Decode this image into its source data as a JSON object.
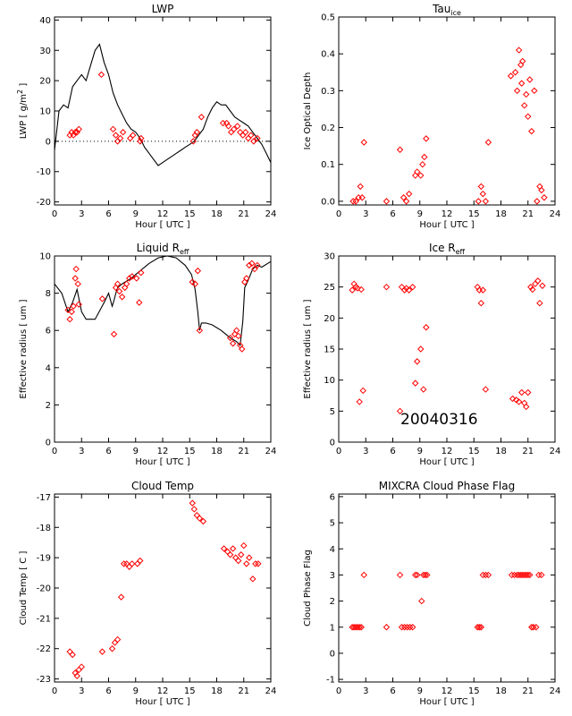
{
  "date_label": "20040316",
  "colors": {
    "model": "#000000",
    "obs": "#ff0000"
  },
  "chart_data": [
    {
      "type": "line",
      "title": "LWP",
      "xlabel": "Hour [ UTC ]",
      "ylabel": "LWP [ g/m",
      "ylabel_sup": "2",
      "ylabel_tail": " ]",
      "xlim": [
        0,
        24
      ],
      "ylim": [
        -21,
        41
      ],
      "xticks": [
        "0",
        "3",
        "6",
        "9",
        "12",
        "15",
        "18",
        "21",
        "24"
      ],
      "yticks": [
        "-20",
        "-10",
        "0",
        "10",
        "20",
        "30",
        "40"
      ],
      "zero_line": true,
      "series": [
        {
          "style": "line",
          "x": [
            0,
            0.5,
            1,
            1.5,
            2,
            2.5,
            3,
            3.5,
            4,
            4.5,
            5,
            5.5,
            6,
            6.5,
            7,
            7.5,
            8,
            8.5,
            9,
            9.5,
            10,
            10.5,
            11,
            11.5,
            12,
            12.5,
            13,
            13.5,
            14,
            14.5,
            15,
            15.5,
            16,
            16.5,
            17,
            17.5,
            18,
            18.5,
            19,
            19.5,
            20,
            20.5,
            21,
            21.5,
            22,
            22.5,
            23,
            23.5,
            24
          ],
          "y": [
            -3,
            10,
            12,
            11,
            18,
            20,
            22,
            20,
            25,
            30,
            32,
            26,
            22,
            16,
            12,
            9,
            6,
            4,
            3,
            1,
            -2,
            -4,
            -6,
            -8,
            -7,
            -6,
            -5,
            -4,
            -3,
            -2,
            -1,
            0,
            2,
            4,
            8,
            11,
            13,
            12,
            12,
            10,
            8,
            7,
            6,
            5,
            3,
            1,
            -1,
            -4,
            -7
          ]
        },
        {
          "style": "diamond",
          "x": [
            1.7,
            1.9,
            2.1,
            2.3,
            2.5,
            2.7,
            5.2,
            6.5,
            6.8,
            7.0,
            7.3,
            7.6,
            8.4,
            8.7,
            9.5,
            9.6,
            15.4,
            15.6,
            15.8,
            16.3,
            18.7,
            19.1,
            19.3,
            19.6,
            19.9,
            20.3,
            20.6,
            20.9,
            21.2,
            21.5,
            21.8,
            22.1,
            22.5
          ],
          "y": [
            2,
            3,
            2,
            3,
            3,
            4,
            22,
            4,
            2,
            0,
            1,
            3,
            1,
            2,
            0,
            1,
            0,
            2,
            3,
            8,
            6,
            6,
            5,
            3,
            4,
            5,
            3,
            2,
            3,
            1,
            2,
            0,
            1
          ]
        }
      ]
    },
    {
      "type": "scatter",
      "title": "Tau",
      "title_sub": "ice",
      "xlabel": "Hour [ UTC ]",
      "ylabel": "Ice Optical Depth",
      "xlim": [
        0,
        24
      ],
      "ylim": [
        -0.01,
        0.5
      ],
      "xticks": [
        "0",
        "3",
        "6",
        "9",
        "12",
        "15",
        "18",
        "21",
        "24"
      ],
      "yticks": [
        "0.0",
        "0.1",
        "0.2",
        "0.3",
        "0.4",
        "0.5"
      ],
      "series": [
        {
          "style": "diamond",
          "x": [
            1.6,
            1.9,
            2.2,
            2.4,
            2.6,
            2.8,
            5.3,
            6.8,
            7.2,
            7.5,
            7.8,
            8.5,
            8.7,
            9.1,
            9.3,
            9.5,
            9.7,
            15.5,
            15.8,
            16.0,
            16.3,
            16.6,
            19.1,
            19.6,
            19.8,
            20.0,
            20.2,
            20.3,
            20.4,
            20.6,
            20.8,
            21.0,
            21.2,
            21.4,
            21.7,
            22.0,
            22.3,
            22.5,
            22.8
          ],
          "y": [
            0,
            0,
            0.01,
            0.04,
            0.01,
            0.16,
            0,
            0.14,
            0.01,
            0,
            0.02,
            0.07,
            0.08,
            0.07,
            0.1,
            0.12,
            0.17,
            0,
            0.04,
            0.02,
            0,
            0.16,
            0.34,
            0.35,
            0.3,
            0.41,
            0.37,
            0.32,
            0.38,
            0.26,
            0.29,
            0.23,
            0.33,
            0.19,
            0.3,
            0,
            0.04,
            0.03,
            0.01
          ]
        }
      ]
    },
    {
      "type": "line",
      "title": "Liquid R",
      "title_sub": "eff",
      "xlabel": "Hour [ UTC ]",
      "ylabel": "Effective radius [ um ]",
      "xlim": [
        0,
        24
      ],
      "ylim": [
        0,
        10
      ],
      "xticks": [
        "0",
        "3",
        "6",
        "9",
        "12",
        "15",
        "18",
        "21",
        "24"
      ],
      "yticks": [
        "0",
        "2",
        "4",
        "6",
        "8",
        "10"
      ],
      "series": [
        {
          "style": "line",
          "x": [
            0,
            0.8,
            1.5,
            2.0,
            2.5,
            3.0,
            3.5,
            4.5,
            5.5,
            6.0,
            6.4,
            6.6,
            6.8,
            7.0,
            7.5,
            8.5,
            9.5,
            10.5,
            11.5,
            12.5,
            13.5,
            14.5,
            15.2,
            15.6,
            15.9,
            16.1,
            16.3,
            16.8,
            17.5,
            18.5,
            19.5,
            20.2,
            20.6,
            20.9,
            21.1,
            21.4,
            22.0,
            22.5,
            23.0,
            24.0
          ],
          "y": [
            8.5,
            8.0,
            7.0,
            7.5,
            8.2,
            7.0,
            6.6,
            6.6,
            7.5,
            8.0,
            7.3,
            7.6,
            8.0,
            8.3,
            8.5,
            8.8,
            9.2,
            9.6,
            9.9,
            10.0,
            9.9,
            9.5,
            9.0,
            8.2,
            7.0,
            6.0,
            6.4,
            6.4,
            6.3,
            6.0,
            5.6,
            5.4,
            5.2,
            6.5,
            8.3,
            8.6,
            9.3,
            9.5,
            9.4,
            9.7
          ]
        },
        {
          "style": "diamond",
          "x": [
            1.5,
            1.7,
            1.9,
            2.1,
            2.3,
            2.4,
            2.6,
            2.7,
            5.3,
            6.6,
            6.8,
            7.0,
            7.2,
            7.5,
            7.8,
            8.0,
            8.3,
            8.6,
            9.1,
            9.4,
            9.6,
            15.3,
            15.6,
            15.9,
            16.1,
            19.5,
            19.8,
            20.0,
            20.2,
            20.4,
            20.6,
            20.8,
            21.1,
            21.3,
            21.6,
            21.9,
            22.2,
            22.5
          ],
          "y": [
            7.1,
            6.6,
            7.0,
            7.3,
            8.8,
            9.3,
            8.5,
            7.4,
            7.7,
            5.8,
            8.3,
            8.5,
            8.1,
            7.8,
            8.3,
            8.5,
            8.8,
            8.9,
            8.8,
            7.5,
            9.1,
            8.6,
            8.5,
            9.2,
            6.0,
            5.6,
            5.3,
            5.8,
            6.0,
            5.7,
            5.2,
            5.0,
            8.6,
            8.8,
            9.5,
            9.6,
            9.3,
            9.5
          ]
        }
      ]
    },
    {
      "type": "scatter",
      "title": "Ice R",
      "title_sub": "eff",
      "xlabel": "Hour [ UTC ]",
      "ylabel": "Effective radius [ um ]",
      "xlim": [
        0,
        24
      ],
      "ylim": [
        0,
        30
      ],
      "xticks": [
        "0",
        "3",
        "6",
        "9",
        "12",
        "15",
        "18",
        "21",
        "24"
      ],
      "yticks": [
        "0",
        "5",
        "10",
        "15",
        "20",
        "25",
        "30"
      ],
      "series": [
        {
          "style": "diamond",
          "x": [
            1.5,
            1.7,
            1.9,
            2.1,
            2.3,
            2.5,
            2.7,
            5.3,
            6.8,
            7.0,
            7.3,
            7.5,
            7.8,
            8.2,
            8.5,
            8.7,
            9.1,
            9.4,
            9.7,
            15.4,
            15.6,
            15.8,
            16.0,
            16.3,
            19.3,
            19.7,
            20.0,
            20.3,
            20.6,
            20.8,
            21.0,
            21.3,
            21.5,
            21.8,
            22.1,
            22.3,
            22.6
          ],
          "y": [
            24.5,
            25.5,
            25,
            24.8,
            6.5,
            24.6,
            8.3,
            25,
            5,
            25,
            24.5,
            24.8,
            24.5,
            25,
            9.5,
            13,
            15,
            8.5,
            18.5,
            25,
            24.5,
            22.4,
            24.5,
            8.5,
            7,
            6.8,
            6.5,
            8,
            6.3,
            5.7,
            8,
            25,
            24.6,
            25.5,
            26,
            22.4,
            25.2
          ]
        }
      ]
    },
    {
      "type": "scatter",
      "title": "Cloud Temp",
      "xlabel": "Hour [ UTC ]",
      "ylabel": "Cloud Temp [ C ]",
      "xlim": [
        0,
        24
      ],
      "ylim": [
        -23.1,
        -16.9
      ],
      "xticks": [
        "0",
        "3",
        "6",
        "9",
        "12",
        "15",
        "18",
        "21",
        "24"
      ],
      "yticks": [
        "-23",
        "-22",
        "-21",
        "-20",
        "-19",
        "-18",
        "-17"
      ],
      "series": [
        {
          "style": "diamond",
          "x": [
            1.7,
            2.0,
            2.3,
            2.5,
            2.7,
            3.0,
            5.3,
            6.4,
            6.7,
            7.0,
            7.4,
            7.7,
            8.0,
            8.3,
            8.6,
            9.2,
            9.5,
            15.3,
            15.5,
            15.8,
            16.1,
            16.5,
            18.8,
            19.2,
            19.5,
            19.8,
            20.1,
            20.4,
            20.7,
            21.0,
            21.3,
            21.6,
            22.0,
            22.3,
            22.6
          ],
          "y": [
            -22.1,
            -22.2,
            -22.8,
            -22.9,
            -22.7,
            -22.6,
            -22.1,
            -22.0,
            -21.8,
            -21.7,
            -20.3,
            -19.2,
            -19.2,
            -19.3,
            -19.2,
            -19.2,
            -19.1,
            -17.2,
            -17.4,
            -17.6,
            -17.7,
            -17.8,
            -18.7,
            -18.8,
            -18.9,
            -18.7,
            -19.0,
            -19.1,
            -18.9,
            -18.6,
            -19.2,
            -19.0,
            -19.7,
            -19.2,
            -19.2
          ]
        }
      ]
    },
    {
      "type": "scatter",
      "title": "MIXCRA Cloud Phase Flag",
      "xlabel": "Hour [ UTC ]",
      "ylabel": "Cloud Phase Flag",
      "xlim": [
        0,
        24
      ],
      "ylim": [
        -1.1,
        6.1
      ],
      "xticks": [
        "0",
        "3",
        "6",
        "9",
        "12",
        "15",
        "18",
        "21",
        "24"
      ],
      "yticks": [
        "-1",
        "0",
        "1",
        "2",
        "3",
        "4",
        "5",
        "6"
      ],
      "series": [
        {
          "style": "diamond",
          "x": [
            1.5,
            1.7,
            1.9,
            2.1,
            2.3,
            2.5,
            2.8,
            5.3,
            6.8,
            7.0,
            7.3,
            7.6,
            7.9,
            8.2,
            8.5,
            8.7,
            9.2,
            9.4,
            9.6,
            9.8,
            15.4,
            15.6,
            15.8,
            16.0,
            16.3,
            16.6,
            19.2,
            19.5,
            19.8,
            20.0,
            20.2,
            20.4,
            20.6,
            20.8,
            21.0,
            21.2,
            21.4,
            21.6,
            21.9,
            22.2,
            22.5
          ],
          "y": [
            1,
            1,
            1,
            1,
            1,
            1,
            3,
            1,
            3,
            1,
            1,
            1,
            1,
            1,
            3,
            3,
            2,
            3,
            3,
            3,
            1,
            1,
            1,
            3,
            3,
            3,
            3,
            3,
            3,
            3,
            3,
            3,
            3,
            3,
            3,
            3,
            1,
            1,
            1,
            3,
            3
          ]
        }
      ]
    }
  ]
}
